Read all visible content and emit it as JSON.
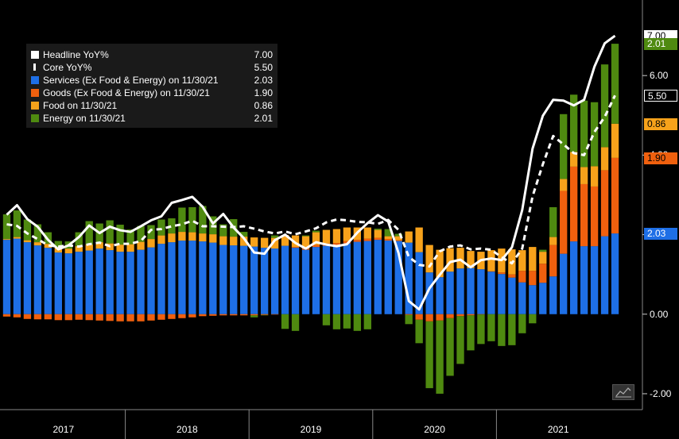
{
  "chart_data": {
    "type": "bar+line",
    "title": "",
    "xlabel": "",
    "ylabel": "",
    "ylim": [
      -2.4,
      7.9
    ],
    "yticks": [
      -2.0,
      0.0,
      2.0,
      4.0,
      6.0
    ],
    "ytick_labels": [
      "-2.00",
      "0.00",
      "2.00",
      "4.00",
      "6.00"
    ],
    "x_year_labels": [
      "2017",
      "2018",
      "2019",
      "2020",
      "2021"
    ],
    "months_count": 60,
    "series": [
      {
        "name": "Services (Ex Food & Energy) on 11/30/21",
        "type": "bar",
        "color": "#1e6fe6",
        "values": [
          1.87,
          1.9,
          1.81,
          1.73,
          1.67,
          1.55,
          1.53,
          1.57,
          1.6,
          1.65,
          1.61,
          1.57,
          1.57,
          1.62,
          1.68,
          1.77,
          1.81,
          1.85,
          1.85,
          1.83,
          1.8,
          1.74,
          1.73,
          1.72,
          1.7,
          1.67,
          1.65,
          1.72,
          1.67,
          1.62,
          1.69,
          1.72,
          1.73,
          1.78,
          1.82,
          1.84,
          1.87,
          1.85,
          1.84,
          1.8,
          1.56,
          1.05,
          0.93,
          1.07,
          1.15,
          1.16,
          1.13,
          1.07,
          1.01,
          0.92,
          0.8,
          0.73,
          0.79,
          0.95,
          1.52,
          1.83,
          1.71,
          1.71,
          1.96,
          2.03
        ]
      },
      {
        "name": "Goods (Ex Food & Energy) on 11/30/21",
        "type": "bar",
        "color": "#f0600e",
        "values": [
          -0.06,
          -0.08,
          -0.12,
          -0.13,
          -0.13,
          -0.15,
          -0.15,
          -0.14,
          -0.15,
          -0.16,
          -0.17,
          -0.18,
          -0.18,
          -0.18,
          -0.16,
          -0.14,
          -0.12,
          -0.1,
          -0.08,
          -0.05,
          -0.04,
          -0.03,
          -0.03,
          -0.03,
          -0.03,
          -0.02,
          -0.01,
          0.0,
          0.02,
          0.03,
          0.05,
          0.06,
          0.06,
          0.06,
          0.05,
          0.06,
          0.05,
          0.04,
          0.02,
          -0.02,
          -0.14,
          -0.18,
          -0.16,
          -0.1,
          -0.05,
          -0.03,
          -0.01,
          0.01,
          0.04,
          0.08,
          0.29,
          0.36,
          0.48,
          0.79,
          1.58,
          1.88,
          1.56,
          1.5,
          1.66,
          1.9
        ]
      },
      {
        "name": "Food on 11/30/21",
        "type": "bar",
        "color": "#f7a21b",
        "values": [
          0.02,
          0.04,
          0.05,
          0.08,
          0.1,
          0.13,
          0.12,
          0.14,
          0.15,
          0.16,
          0.17,
          0.18,
          0.19,
          0.2,
          0.21,
          0.21,
          0.22,
          0.22,
          0.21,
          0.2,
          0.21,
          0.22,
          0.22,
          0.23,
          0.23,
          0.25,
          0.27,
          0.27,
          0.29,
          0.31,
          0.32,
          0.34,
          0.35,
          0.34,
          0.31,
          0.28,
          0.2,
          0.07,
          0.1,
          0.28,
          0.62,
          0.69,
          0.69,
          0.59,
          0.52,
          0.43,
          0.44,
          0.53,
          0.6,
          0.63,
          0.52,
          0.6,
          0.3,
          0.2,
          0.3,
          0.37,
          0.43,
          0.51,
          0.58,
          0.86
        ]
      },
      {
        "name": "Energy on 11/30/21",
        "type": "bar",
        "color": "#4f8a10",
        "values": [
          0.62,
          0.67,
          0.52,
          0.45,
          0.29,
          0.16,
          0.18,
          0.35,
          0.59,
          0.47,
          0.58,
          0.5,
          0.37,
          0.4,
          0.35,
          0.4,
          0.38,
          0.61,
          0.63,
          0.69,
          0.45,
          0.3,
          0.44,
          0.12,
          -0.05,
          -0.01,
          0.06,
          -0.37,
          -0.42,
          0.02,
          0.04,
          -0.28,
          -0.38,
          -0.36,
          -0.42,
          -0.38,
          0.03,
          0.18,
          0.06,
          -0.23,
          -0.59,
          -1.68,
          -1.84,
          -1.45,
          -1.2,
          -0.88,
          -0.74,
          -0.68,
          -0.8,
          -0.78,
          -0.48,
          -0.23,
          0.05,
          0.75,
          1.63,
          1.44,
          1.67,
          1.61,
          2.08,
          2.01
        ]
      },
      {
        "name": "Headline YoY%",
        "type": "line",
        "color": "#ffffff",
        "style": "solid",
        "values": [
          2.5,
          2.74,
          2.39,
          2.2,
          1.87,
          1.63,
          1.73,
          1.94,
          2.23,
          2.04,
          2.2,
          2.11,
          2.07,
          2.21,
          2.36,
          2.46,
          2.8,
          2.87,
          2.95,
          2.7,
          2.28,
          2.52,
          2.18,
          1.91,
          1.55,
          1.52,
          1.86,
          2.0,
          1.79,
          1.65,
          1.81,
          1.75,
          1.71,
          1.76,
          2.05,
          2.29,
          2.49,
          2.33,
          1.54,
          0.33,
          0.12,
          0.65,
          0.99,
          1.31,
          1.37,
          1.18,
          1.36,
          1.4,
          1.36,
          1.68,
          2.62,
          4.16,
          4.99,
          5.39,
          5.37,
          5.25,
          5.39,
          6.22,
          6.81,
          7.0
        ]
      },
      {
        "name": "Core YoY%",
        "type": "line",
        "color": "#ffffff",
        "style": "dashed",
        "values": [
          2.26,
          2.22,
          2.03,
          1.89,
          1.73,
          1.7,
          1.73,
          1.7,
          1.76,
          1.8,
          1.71,
          1.77,
          1.77,
          1.84,
          2.12,
          2.14,
          2.21,
          2.26,
          2.35,
          2.21,
          2.21,
          2.2,
          2.19,
          2.21,
          2.15,
          2.08,
          2.03,
          2.08,
          2.01,
          2.08,
          2.16,
          2.31,
          2.38,
          2.36,
          2.32,
          2.31,
          2.27,
          2.37,
          2.12,
          1.44,
          1.24,
          1.2,
          1.58,
          1.7,
          1.73,
          1.63,
          1.65,
          1.62,
          1.43,
          1.28,
          1.65,
          2.96,
          3.77,
          4.48,
          4.27,
          4.05,
          4.0,
          4.58,
          4.96,
          5.5
        ]
      }
    ],
    "end_labels": [
      {
        "text": "7.00",
        "series": "Headline YoY%",
        "bg": "#ffffff",
        "fg": "#000000"
      },
      {
        "text": "2.01",
        "series": "Energy on 11/30/21",
        "bg": "#4f8a10",
        "fg": "#ffffff"
      },
      {
        "text": "5.50",
        "series": "Core YoY%",
        "bg": "#000000",
        "fg": "#ffffff"
      },
      {
        "text": "0.86",
        "series": "Food on 11/30/21",
        "bg": "#f7a21b",
        "fg": "#000000"
      },
      {
        "text": "1.90",
        "series": "Goods (Ex Food & Energy) on 11/30/21",
        "bg": "#f0600e",
        "fg": "#000000"
      },
      {
        "text": "2.03",
        "series": "Services (Ex Food & Energy) on 11/30/21",
        "bg": "#1e6fe6",
        "fg": "#ffffff"
      }
    ],
    "legend": {
      "placement": "top-left",
      "entries": [
        {
          "label": "Headline YoY%",
          "value": "7.00",
          "color": "#ffffff",
          "style": "solid"
        },
        {
          "label": "Core YoY%",
          "value": "5.50",
          "color": "#ffffff",
          "style": "dashed"
        },
        {
          "label": "Services (Ex Food & Energy) on 11/30/21",
          "value": "2.03",
          "color": "#1e6fe6",
          "style": "solid"
        },
        {
          "label": "Goods (Ex Food & Energy) on 11/30/21",
          "value": "1.90",
          "color": "#f0600e",
          "style": "solid"
        },
        {
          "label": "Food on 11/30/21",
          "value": "0.86",
          "color": "#f7a21b",
          "style": "solid"
        },
        {
          "label": "Energy on 11/30/21",
          "value": "2.01",
          "color": "#4f8a10",
          "style": "solid"
        }
      ]
    }
  },
  "icons": {
    "chart_toggle": "line-chart-icon"
  }
}
